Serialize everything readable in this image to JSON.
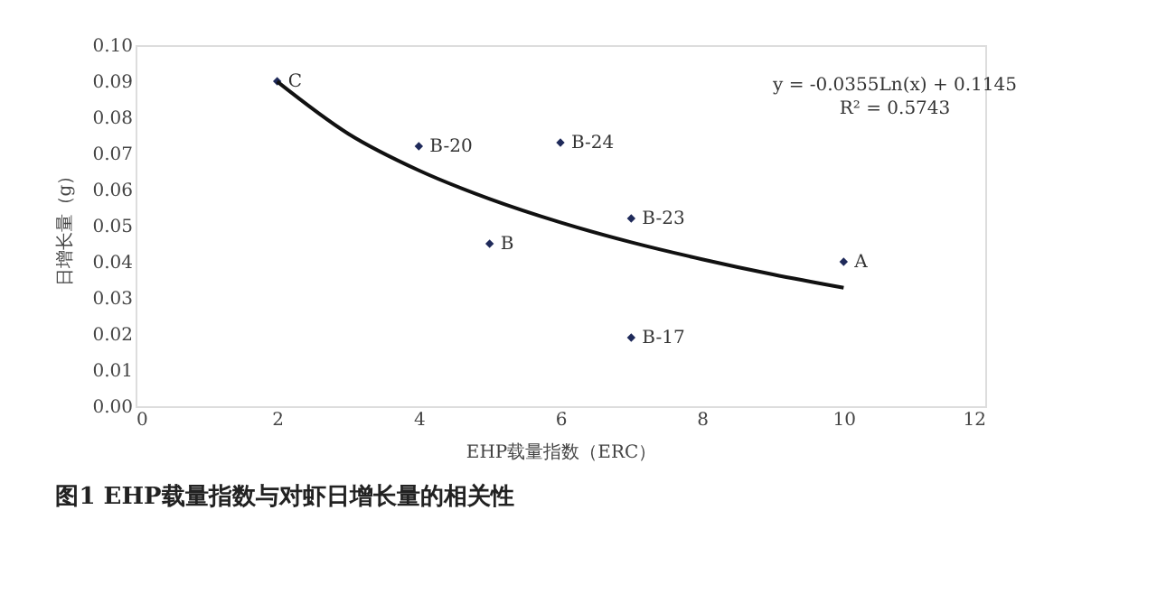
{
  "chart_data": {
    "type": "scatter",
    "title": "图1  EHP载量指数与对虾日增长量的相关性",
    "xlabel": "EHP载量指数（ERC）",
    "ylabel": "日增长量（g）",
    "x": [
      2,
      4,
      6,
      5,
      7,
      10,
      7
    ],
    "series": [
      {
        "color": "#1f2a5a",
        "marker": "diamond",
        "values": [
          0.09,
          0.072,
          0.073,
          0.045,
          0.052,
          0.04,
          0.019
        ]
      },
      {
        "type": "line",
        "color": "#111111",
        "marker": "none",
        "line_style": "solid",
        "x": [
          2,
          3,
          4,
          5,
          6,
          7,
          8,
          9,
          10
        ],
        "values": [
          0.0899,
          0.0755,
          0.0653,
          0.0574,
          0.0509,
          0.0454,
          0.0407,
          0.0365,
          0.0328
        ]
      }
    ],
    "annotations": [
      {
        "text": "C",
        "x": 2,
        "y": 0.09
      },
      {
        "text": "B-20",
        "x": 4,
        "y": 0.072
      },
      {
        "text": "B-24",
        "x": 6,
        "y": 0.073
      },
      {
        "text": "B",
        "x": 5,
        "y": 0.045
      },
      {
        "text": "B-23",
        "x": 7,
        "y": 0.052
      },
      {
        "text": "A",
        "x": 10,
        "y": 0.04
      },
      {
        "text": "B-17",
        "x": 7,
        "y": 0.019
      },
      "y = -0.0355Ln(x) + 0.1145",
      "R² = 0.5743"
    ],
    "xlim": [
      0,
      12
    ],
    "xticks": [
      0,
      2,
      4,
      6,
      8,
      10,
      12
    ],
    "ylim": [
      0,
      0.1
    ],
    "yticks": [
      {
        "value": 0,
        "label": "0.00"
      },
      {
        "value": 0.01,
        "label": "0.01"
      },
      {
        "value": 0.02,
        "label": "0.02"
      },
      {
        "value": 0.03,
        "label": "0.03"
      },
      {
        "value": 0.04,
        "label": "0.04"
      },
      {
        "value": 0.05,
        "label": "0.05"
      },
      {
        "value": 0.06,
        "label": "0.06"
      },
      {
        "value": 0.07,
        "label": "0.07"
      },
      {
        "value": 0.08,
        "label": "0.08"
      },
      {
        "value": 0.09,
        "label": "0.09"
      },
      {
        "value": 0.1,
        "label": "0.10"
      }
    ],
    "grid": false
  }
}
